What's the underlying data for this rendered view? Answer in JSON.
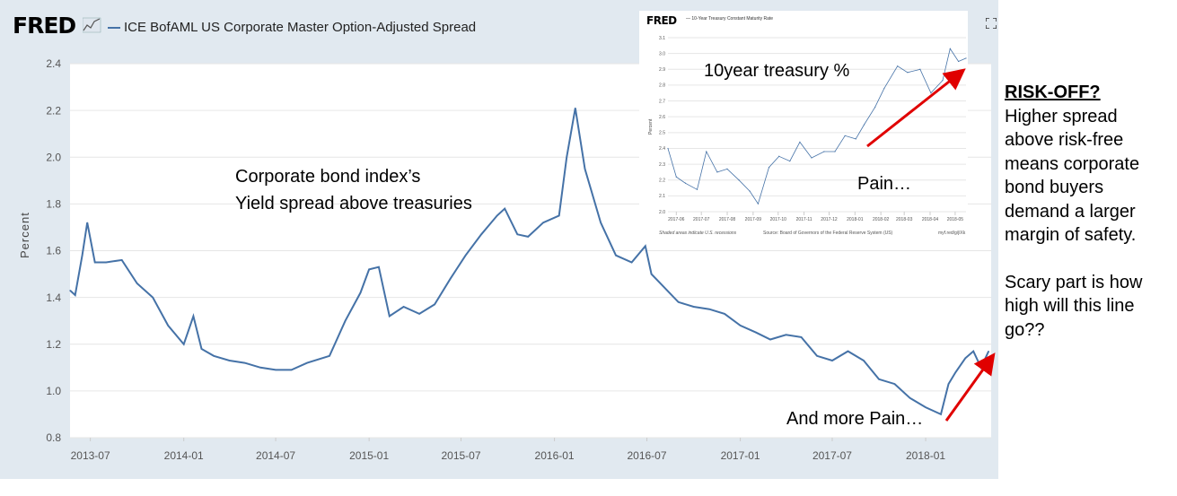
{
  "header": {
    "logo_text": "FRED",
    "series_title": "ICE BofAML US Corporate Master Option-Adjusted Spread"
  },
  "annotations": {
    "corp_line1": "Corporate bond index’s",
    "corp_line2": "Yield spread above treasuries",
    "more_pain": "And more Pain…"
  },
  "side_text": {
    "title": "RISK-OFF?",
    "lines": [
      "Higher spread",
      "above risk-free",
      "means corporate",
      "bond buyers",
      "demand a larger",
      "margin of safety."
    ],
    "lines2": [
      "Scary part is how",
      "high will this line",
      "go??"
    ]
  },
  "inset": {
    "logo_text": "FRED",
    "series_title": "— 10-Year Treasury Constant Maturity Rate",
    "label_10y": "10year treasury %",
    "label_pain": "Pain…",
    "ylabel": "Percent",
    "foot_left": "Shaded areas indicate U.S. recessions",
    "foot_mid": "Source: Board of Governors of the Federal Reserve System (US)",
    "foot_right": "myf.red/g/jlXk"
  },
  "colors": {
    "line": "#4572a7",
    "panel_bg": "#e1e9f0",
    "arrow": "#e00000"
  },
  "chart_data": [
    {
      "type": "line",
      "title": "ICE BofAML US Corporate Master Option-Adjusted Spread",
      "ylabel": "Percent",
      "xlabel": "",
      "ylim": [
        0.8,
        2.4
      ],
      "yticks": [
        "0.8",
        "1.0",
        "1.2",
        "1.4",
        "1.6",
        "1.8",
        "2.0",
        "2.2",
        "2.4"
      ],
      "xticks": [
        "2013-07",
        "2014-01",
        "2014-07",
        "2015-01",
        "2015-07",
        "2016-01",
        "2016-07",
        "2017-01",
        "2017-07",
        "2018-01"
      ],
      "grid": true,
      "series": [
        {
          "name": "ICE BofAML US Corporate Master Option-Adjusted Spread",
          "x": [
            "2013-05-22",
            "2013-06-01",
            "2013-06-15",
            "2013-06-25",
            "2013-07-10",
            "2013-08-01",
            "2013-09-01",
            "2013-10-01",
            "2013-11-01",
            "2013-12-01",
            "2014-01-01",
            "2014-01-20",
            "2014-02-05",
            "2014-03-01",
            "2014-04-01",
            "2014-05-01",
            "2014-06-01",
            "2014-07-01",
            "2014-08-01",
            "2014-09-01",
            "2014-10-15",
            "2014-11-15",
            "2014-12-15",
            "2015-01-01",
            "2015-01-20",
            "2015-02-10",
            "2015-03-10",
            "2015-04-10",
            "2015-05-10",
            "2015-06-10",
            "2015-07-10",
            "2015-08-10",
            "2015-09-10",
            "2015-09-25",
            "2015-10-20",
            "2015-11-10",
            "2015-12-10",
            "2016-01-10",
            "2016-01-25",
            "2016-02-11",
            "2016-03-01",
            "2016-04-01",
            "2016-05-01",
            "2016-06-01",
            "2016-06-28",
            "2016-07-10",
            "2016-08-01",
            "2016-09-01",
            "2016-10-01",
            "2016-11-01",
            "2016-12-01",
            "2017-01-01",
            "2017-02-01",
            "2017-03-01",
            "2017-04-01",
            "2017-05-01",
            "2017-06-01",
            "2017-07-01",
            "2017-08-01",
            "2017-09-01",
            "2017-10-01",
            "2017-11-01",
            "2017-12-01",
            "2018-01-01",
            "2018-01-31",
            "2018-02-15",
            "2018-03-01",
            "2018-03-20",
            "2018-04-05",
            "2018-04-20",
            "2018-05-05"
          ],
          "values": [
            1.43,
            1.41,
            1.58,
            1.72,
            1.55,
            1.55,
            1.56,
            1.46,
            1.4,
            1.28,
            1.2,
            1.32,
            1.18,
            1.15,
            1.13,
            1.12,
            1.1,
            1.09,
            1.09,
            1.12,
            1.15,
            1.3,
            1.42,
            1.52,
            1.53,
            1.32,
            1.36,
            1.33,
            1.37,
            1.48,
            1.58,
            1.67,
            1.75,
            1.78,
            1.67,
            1.66,
            1.72,
            1.75,
            2.0,
            2.21,
            1.95,
            1.72,
            1.58,
            1.55,
            1.62,
            1.5,
            1.45,
            1.38,
            1.36,
            1.35,
            1.33,
            1.28,
            1.25,
            1.22,
            1.24,
            1.23,
            1.15,
            1.13,
            1.17,
            1.13,
            1.05,
            1.03,
            0.97,
            0.93,
            0.9,
            1.03,
            1.08,
            1.14,
            1.17,
            1.1,
            1.17
          ]
        }
      ]
    },
    {
      "type": "line",
      "title": "10-Year Treasury Constant Maturity Rate",
      "ylabel": "Percent",
      "ylim": [
        2.0,
        3.1
      ],
      "yticks": [
        "2.0",
        "2.1",
        "2.2",
        "2.3",
        "2.4",
        "2.5",
        "2.6",
        "2.7",
        "2.8",
        "2.9",
        "3.0",
        "3.1"
      ],
      "xticks": [
        "2017-06",
        "2017-07",
        "2017-08",
        "2017-09",
        "2017-10",
        "2017-11",
        "2017-12",
        "2018-01",
        "2018-02",
        "2018-03",
        "2018-04",
        "2018-05"
      ],
      "series": [
        {
          "name": "10-Year Treasury Constant Maturity Rate",
          "x": [
            "2017-05-22",
            "2017-06-01",
            "2017-06-12",
            "2017-06-26",
            "2017-07-07",
            "2017-07-20",
            "2017-08-01",
            "2017-08-15",
            "2017-08-28",
            "2017-09-07",
            "2017-09-20",
            "2017-10-02",
            "2017-10-15",
            "2017-10-27",
            "2017-11-10",
            "2017-11-25",
            "2017-12-08",
            "2017-12-20",
            "2018-01-02",
            "2018-01-12",
            "2018-01-25",
            "2018-02-05",
            "2018-02-21",
            "2018-03-05",
            "2018-03-20",
            "2018-04-02",
            "2018-04-16",
            "2018-04-25",
            "2018-05-05",
            "2018-05-14"
          ],
          "values": [
            2.4,
            2.22,
            2.18,
            2.14,
            2.38,
            2.25,
            2.27,
            2.2,
            2.13,
            2.05,
            2.28,
            2.35,
            2.32,
            2.44,
            2.34,
            2.38,
            2.38,
            2.48,
            2.46,
            2.55,
            2.66,
            2.78,
            2.92,
            2.88,
            2.9,
            2.75,
            2.83,
            3.03,
            2.95,
            2.97
          ]
        }
      ]
    }
  ]
}
